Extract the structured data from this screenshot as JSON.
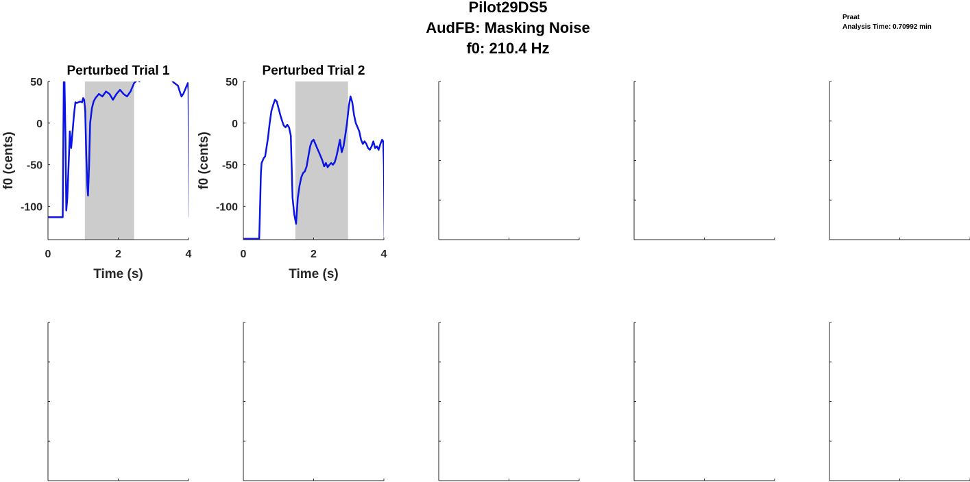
{
  "figure": {
    "title_lines": [
      "Pilot29DS5",
      "AudFB: Masking Noise",
      "f0: 210.4 Hz"
    ],
    "note_lines": [
      "Praat",
      "Analysis Time: 0.70992 min"
    ]
  },
  "colors": {
    "line": "#0a14e6",
    "shade": "#cccccc",
    "axis": "#262626"
  },
  "chart_data": [
    {
      "type": "line",
      "title": "Perturbed Trial 1",
      "xlabel": "Time (s)",
      "ylabel": "f0 (cents)",
      "xlim": [
        0,
        4
      ],
      "ylim": [
        -140,
        50
      ],
      "xticks": [
        0,
        2,
        4
      ],
      "yticks": [
        50,
        0,
        -50,
        -100
      ],
      "shaded_region": [
        1.05,
        2.45
      ],
      "series": [
        {
          "x": [
            0,
            0.42,
            0.43,
            0.45,
            0.47,
            0.5,
            0.52,
            0.55,
            0.6,
            0.62,
            0.66,
            0.7,
            0.74,
            0.78,
            0.82,
            0.86,
            0.92,
            0.97,
            1.0,
            1.03,
            1.06,
            1.09,
            1.12,
            1.14,
            1.17,
            1.2,
            1.25,
            1.3,
            1.35,
            1.45,
            1.55,
            1.65,
            1.75,
            1.85,
            1.95,
            2.05,
            2.15,
            2.25,
            2.35,
            2.45,
            2.55,
            2.6,
            2.65,
            2.7,
            2.75,
            2.8,
            2.85,
            2.88,
            3.48,
            3.5,
            3.55,
            3.6,
            3.7,
            3.75,
            3.8,
            3.85,
            3.9,
            3.95,
            3.98,
            4.0,
            4.01,
            4.02
          ],
          "y": [
            -113,
            -113,
            -60,
            55,
            50,
            -20,
            -105,
            -90,
            -35,
            -10,
            -30,
            -10,
            10,
            25,
            24,
            25,
            26,
            25,
            30,
            28,
            15,
            -40,
            -75,
            -87,
            -50,
            0,
            18,
            26,
            30,
            35,
            32,
            38,
            35,
            28,
            35,
            40,
            35,
            32,
            38,
            48,
            52,
            50,
            55,
            60,
            62,
            60,
            58,
            55,
            55,
            53,
            50,
            48,
            45,
            38,
            32,
            35,
            40,
            45,
            48,
            40,
            -50,
            -113
          ]
        }
      ]
    },
    {
      "type": "line",
      "title": "Perturbed Trial 2",
      "xlabel": "Time (s)",
      "ylabel": "f0 (cents)",
      "xlim": [
        0,
        4
      ],
      "ylim": [
        -140,
        50
      ],
      "xticks": [
        0,
        2,
        4
      ],
      "yticks": [
        50,
        0,
        -50,
        -100
      ],
      "shaded_region": [
        1.48,
        2.98
      ],
      "series": [
        {
          "x": [
            0,
            0.45,
            0.47,
            0.5,
            0.52,
            0.55,
            0.58,
            0.62,
            0.65,
            0.7,
            0.75,
            0.8,
            0.85,
            0.9,
            0.95,
            1.0,
            1.05,
            1.1,
            1.15,
            1.2,
            1.25,
            1.3,
            1.35,
            1.4,
            1.45,
            1.5,
            1.55,
            1.6,
            1.65,
            1.7,
            1.75,
            1.8,
            1.85,
            1.9,
            1.95,
            2.0,
            2.05,
            2.1,
            2.15,
            2.2,
            2.25,
            2.3,
            2.35,
            2.4,
            2.45,
            2.5,
            2.55,
            2.6,
            2.65,
            2.7,
            2.75,
            2.8,
            2.85,
            2.9,
            2.95,
            3.0,
            3.05,
            3.1,
            3.15,
            3.2,
            3.25,
            3.3,
            3.35,
            3.4,
            3.45,
            3.5,
            3.55,
            3.6,
            3.65,
            3.7,
            3.75,
            3.8,
            3.85,
            3.9,
            3.95,
            3.98,
            4.0,
            4.02
          ],
          "y": [
            -139,
            -139,
            -110,
            -60,
            -48,
            -45,
            -42,
            -40,
            -32,
            -18,
            0,
            15,
            22,
            28,
            26,
            18,
            10,
            3,
            -3,
            -5,
            -2,
            -5,
            -15,
            -90,
            -110,
            -121,
            -90,
            -75,
            -65,
            -60,
            -58,
            -52,
            -40,
            -28,
            -22,
            -20,
            -25,
            -30,
            -35,
            -40,
            -45,
            -52,
            -48,
            -53,
            -50,
            -48,
            -50,
            -47,
            -40,
            -30,
            -20,
            -35,
            -28,
            -15,
            0,
            20,
            32,
            25,
            10,
            0,
            -5,
            -10,
            -20,
            -25,
            -22,
            -25,
            -30,
            -32,
            -28,
            -22,
            -30,
            -28,
            -32,
            -25,
            -20,
            -22,
            -50,
            -139
          ]
        }
      ]
    },
    {
      "type": "line",
      "title": "",
      "xticks_count": 3,
      "yticks_count": 5,
      "series": []
    },
    {
      "type": "line",
      "title": "",
      "xticks_count": 3,
      "yticks_count": 5,
      "series": []
    },
    {
      "type": "line",
      "title": "",
      "xticks_count": 3,
      "yticks_count": 5,
      "series": []
    },
    {
      "type": "line",
      "title": "",
      "xticks_count": 3,
      "yticks_count": 5,
      "series": []
    },
    {
      "type": "line",
      "title": "",
      "xticks_count": 3,
      "yticks_count": 5,
      "series": []
    },
    {
      "type": "line",
      "title": "",
      "xticks_count": 3,
      "yticks_count": 5,
      "series": []
    },
    {
      "type": "line",
      "title": "",
      "xticks_count": 3,
      "yticks_count": 5,
      "series": []
    },
    {
      "type": "line",
      "title": "",
      "xticks_count": 3,
      "yticks_count": 5,
      "series": []
    }
  ]
}
